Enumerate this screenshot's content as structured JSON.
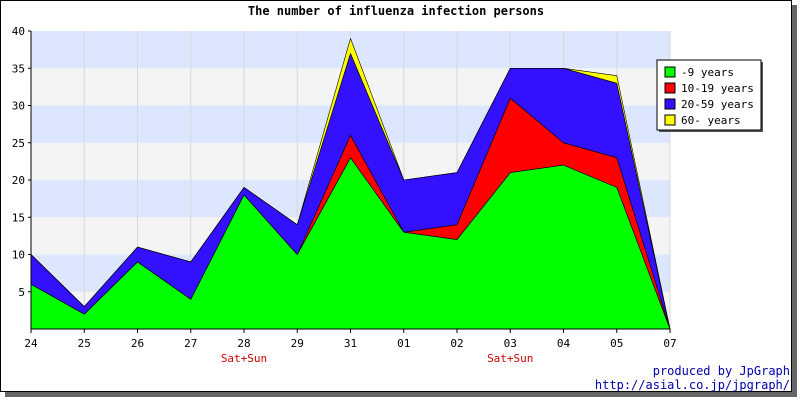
{
  "title": "The number of influenza infection persons",
  "credits": {
    "line1": "produced by JpGraph",
    "line2": "http://asial.co.jp/jpgraph/"
  },
  "colors": {
    "band_light_blue": "#dde6ff",
    "band_light_gray": "#f4f4f4",
    "weekend_label": "#cc0000",
    "axis": "#000000"
  },
  "chart_data": {
    "type": "area",
    "stacked": true,
    "categories": [
      "24",
      "25",
      "26",
      "27",
      "28",
      "29",
      "31",
      "01",
      "02",
      "03",
      "04",
      "05",
      "07"
    ],
    "category_notes": [
      {
        "category": "28",
        "label": "Sat+Sun"
      },
      {
        "category": "03",
        "label": "Sat+Sun"
      }
    ],
    "ylim": [
      0,
      40
    ],
    "yticks": [
      5,
      10,
      15,
      20,
      25,
      30,
      35,
      40
    ],
    "grid": "horizontal alternating bands",
    "legend_position": "top-right",
    "series": [
      {
        "name": "-9 years",
        "color": "#00ff00",
        "values": [
          6,
          2,
          9,
          4,
          18,
          10,
          23,
          13,
          12,
          21,
          22,
          19,
          0
        ]
      },
      {
        "name": "10-19 years",
        "color": "#ff0000",
        "values": [
          0,
          0,
          0,
          0,
          0,
          0,
          3,
          0,
          2,
          10,
          3,
          4,
          0
        ]
      },
      {
        "name": "20-59 years",
        "color": "#3311ff",
        "values": [
          4,
          1,
          2,
          5,
          1,
          4,
          11,
          7,
          7,
          4,
          10,
          10,
          0
        ]
      },
      {
        "name": "60- years",
        "color": "#ffff00",
        "values": [
          0,
          0,
          0,
          0,
          0,
          0,
          2,
          0,
          0,
          0,
          0,
          1,
          0
        ]
      }
    ]
  }
}
